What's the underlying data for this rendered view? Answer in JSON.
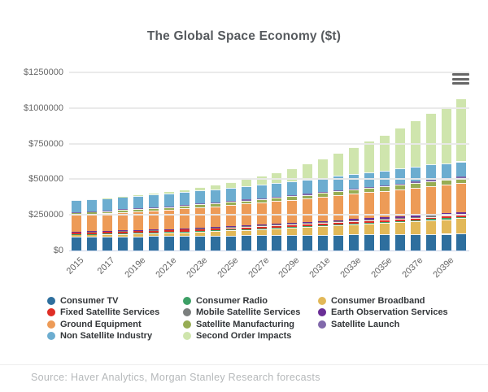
{
  "title": "The Global Space Economy ($t)",
  "menu_icon": "hamburger-menu-icon",
  "source": "Source: Haver Analytics, Morgan Stanley Research forecasts",
  "chart_data": {
    "type": "bar",
    "stacked": true,
    "grid": true,
    "legend_position": "bottom",
    "unit": "$ millions",
    "ylim": [
      0,
      1250000
    ],
    "ytick_step": 250000,
    "ytick_labels": [
      "$0",
      "$250000",
      "$500000",
      "$750000",
      "$1000000",
      "$1250000"
    ],
    "categories": [
      "2015",
      "2016",
      "2017",
      "2018",
      "2019e",
      "2020e",
      "2021e",
      "2022e",
      "2023e",
      "2024e",
      "2025e",
      "2026e",
      "2027e",
      "2028e",
      "2029e",
      "2030e",
      "2031e",
      "2032e",
      "2033e",
      "2034e",
      "2035e",
      "2036e",
      "2037e",
      "2038e",
      "2039e",
      "2040e"
    ],
    "xtick_labels": [
      "2015",
      "2017",
      "2019e",
      "2021e",
      "2023e",
      "2025e",
      "2027e",
      "2029e",
      "2031e",
      "2033e",
      "2035e",
      "2037e",
      "2039e"
    ],
    "xtick_every": 2,
    "series": [
      {
        "name": "Consumer TV",
        "color": "#2e6f9e",
        "values": [
          96000,
          97000,
          98000,
          99000,
          99000,
          100000,
          101000,
          102000,
          103000,
          104000,
          105000,
          106000,
          106000,
          107000,
          108000,
          109000,
          110000,
          111000,
          112000,
          113000,
          113000,
          114000,
          115000,
          116000,
          117000,
          118000
        ]
      },
      {
        "name": "Consumer Broadband",
        "color": "#e2b858",
        "values": [
          14000,
          15000,
          16000,
          17000,
          19000,
          21000,
          23000,
          26000,
          29000,
          32000,
          35000,
          39000,
          43000,
          47000,
          51000,
          55000,
          60000,
          65000,
          70000,
          75000,
          80000,
          85000,
          90000,
          96000,
          102000,
          108000
        ]
      },
      {
        "name": "Consumer Radio",
        "color": "#3da066",
        "values": [
          4000,
          4200,
          4400,
          4600,
          4800,
          5000,
          5200,
          5400,
          5600,
          5800,
          6000,
          6200,
          6400,
          6600,
          6800,
          7000,
          7200,
          7400,
          7600,
          7800,
          8000,
          8200,
          8400,
          8600,
          8800,
          9000
        ]
      },
      {
        "name": "Fixed Satellite Services",
        "color": "#df2e26",
        "values": [
          13000,
          13000,
          13000,
          13000,
          14000,
          14000,
          14000,
          14000,
          14000,
          14000,
          15000,
          15000,
          15000,
          15000,
          15000,
          15000,
          15000,
          16000,
          16000,
          16000,
          16000,
          16000,
          16000,
          16000,
          16000,
          16000
        ]
      },
      {
        "name": "Mobile Satellite Services",
        "color": "#7b7f7e",
        "values": [
          4000,
          4000,
          4000,
          4000,
          4000,
          4500,
          4500,
          4500,
          4500,
          5000,
          5000,
          5000,
          5000,
          5000,
          5000,
          5500,
          5500,
          5500,
          5500,
          5500,
          6000,
          6000,
          6000,
          6000,
          6000,
          6000
        ]
      },
      {
        "name": "Earth Observation Services",
        "color": "#6a2e96",
        "values": [
          2000,
          2000,
          2000,
          3000,
          3000,
          3000,
          3000,
          4000,
          4000,
          4000,
          5000,
          5000,
          6000,
          6000,
          7000,
          7000,
          8000,
          9000,
          9000,
          10000,
          11000,
          11000,
          12000,
          13000,
          13000,
          14000
        ]
      },
      {
        "name": "Ground Equipment",
        "color": "#ed9b57",
        "values": [
          118000,
          121000,
          124000,
          127000,
          130000,
          133000,
          136000,
          139000,
          143000,
          146000,
          149000,
          152000,
          156000,
          159000,
          163000,
          166000,
          170000,
          173000,
          177000,
          181000,
          184000,
          188000,
          192000,
          196000,
          198000,
          200000
        ]
      },
      {
        "name": "Satellite Manufacturing",
        "color": "#97ad54",
        "values": [
          14000,
          15000,
          15000,
          16000,
          17000,
          17000,
          18000,
          19000,
          20000,
          20000,
          21000,
          22000,
          23000,
          24000,
          25000,
          26000,
          27000,
          28000,
          29000,
          30000,
          31000,
          32000,
          33000,
          34000,
          34000,
          35000
        ]
      },
      {
        "name": "Satellite Launch",
        "color": "#8169ab",
        "values": [
          4000,
          4000,
          4000,
          5000,
          5000,
          5000,
          5000,
          6000,
          6000,
          6000,
          6000,
          7000,
          7000,
          7000,
          7000,
          8000,
          8000,
          8000,
          9000,
          9000,
          9000,
          10000,
          10000,
          10000,
          11000,
          11000
        ]
      },
      {
        "name": "Non Satellite Industry",
        "color": "#6cadd0",
        "values": [
          84000,
          85000,
          86000,
          87000,
          88000,
          89000,
          90000,
          91000,
          92000,
          93000,
          94000,
          95000,
          96000,
          97000,
          98000,
          99000,
          100000,
          101000,
          102000,
          103000,
          104000,
          105000,
          106000,
          107000,
          107000,
          108000
        ]
      },
      {
        "name": "Second Order Impacts",
        "color": "#cfe5ad",
        "values": [
          0,
          0,
          1000,
          3000,
          5000,
          8000,
          12000,
          17000,
          23000,
          30000,
          38000,
          48000,
          60000,
          75000,
          92000,
          112000,
          135000,
          160000,
          188000,
          218000,
          250000,
          285000,
          322000,
          360000,
          400000,
          442000
        ]
      }
    ],
    "legend_columns": [
      [
        "Consumer TV",
        "Fixed Satellite Services",
        "Ground Equipment",
        "Non Satellite Industry"
      ],
      [
        "Consumer Radio",
        "Mobile Satellite Services",
        "Satellite Manufacturing",
        "Second Order Impacts"
      ],
      [
        "Consumer Broadband",
        "Earth Observation Services",
        "Satellite Launch"
      ]
    ]
  }
}
